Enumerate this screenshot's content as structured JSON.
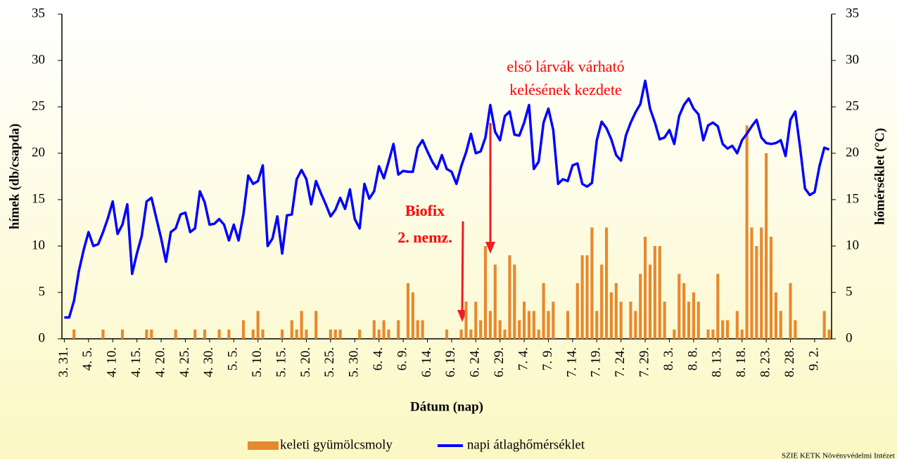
{
  "chart_data": {
    "type": "bar-line",
    "xlabel": "Dátum (nap)",
    "ylabel": "hímek (db/csapda)",
    "y2label": "hőmérséklet (°C)",
    "annotations": [
      "Biofix",
      "2. nemz.",
      "első lárvák várható",
      "kelésének kezdete"
    ],
    "source": "SZIE KETK Növényvédelmi Intézet",
    "categories": [
      "3. 31.",
      null,
      null,
      null,
      null,
      "4. 5.",
      null,
      null,
      null,
      null,
      "4. 10.",
      null,
      null,
      null,
      null,
      "4. 15.",
      null,
      null,
      null,
      null,
      "4. 20.",
      null,
      null,
      null,
      null,
      "4. 25.",
      null,
      null,
      null,
      null,
      "4. 30.",
      null,
      null,
      null,
      null,
      "5. 5.",
      null,
      null,
      null,
      null,
      "5. 10.",
      null,
      null,
      null,
      null,
      "5. 15.",
      null,
      null,
      null,
      null,
      "5. 20.",
      null,
      null,
      null,
      null,
      "5. 25.",
      null,
      null,
      null,
      null,
      "5. 30.",
      null,
      null,
      null,
      null,
      "6. 4.",
      null,
      null,
      null,
      null,
      "6. 9.",
      null,
      null,
      null,
      null,
      "6. 14.",
      null,
      null,
      null,
      null,
      "6. 19.",
      null,
      null,
      null,
      null,
      "6. 24.",
      null,
      null,
      null,
      null,
      "6. 29.",
      null,
      null,
      null,
      null,
      "7. 4.",
      null,
      null,
      null,
      null,
      "7. 9.",
      null,
      null,
      null,
      null,
      "7. 14.",
      null,
      null,
      null,
      null,
      "7. 19.",
      null,
      null,
      null,
      null,
      "7. 24.",
      null,
      null,
      null,
      null,
      "7. 29.",
      null,
      null,
      null,
      null,
      "8. 3.",
      null,
      null,
      null,
      null,
      "8. 8.",
      null,
      null,
      null,
      null,
      "8. 13.",
      null,
      null,
      null,
      null,
      "8. 18.",
      null,
      null,
      null,
      null,
      "8. 23.",
      null,
      null,
      null,
      null,
      "8. 28.",
      null,
      null,
      null,
      null,
      "9. 2.",
      null,
      null,
      null
    ],
    "series": [
      {
        "name": "keleti gyümölcsmoly",
        "kind": "bar",
        "axis": "y",
        "color": "#e8882e",
        "values": [
          0,
          0,
          1,
          0,
          0,
          0,
          0,
          0,
          1,
          0,
          0,
          0,
          1,
          0,
          0,
          0,
          0,
          1,
          1,
          0,
          0,
          0,
          0,
          1,
          0,
          0,
          0,
          1,
          0,
          1,
          0,
          0,
          1,
          0,
          1,
          0,
          0,
          2,
          0,
          1,
          3,
          1,
          0,
          0,
          0,
          1,
          0,
          2,
          1,
          3,
          1,
          0,
          3,
          0,
          0,
          1,
          1,
          1,
          0,
          0,
          0,
          1,
          0,
          0,
          2,
          1,
          2,
          1,
          0,
          2,
          0,
          6,
          5,
          2,
          2,
          0,
          0,
          0,
          0,
          1,
          0,
          0,
          1,
          4,
          1,
          4,
          2,
          10,
          3,
          8,
          2,
          1,
          9,
          8,
          2,
          4,
          3,
          3,
          1,
          6,
          3,
          4,
          0,
          0,
          3,
          0,
          6,
          9,
          9,
          12,
          3,
          8,
          12,
          5,
          6,
          4,
          0,
          4,
          3,
          7,
          11,
          8,
          10,
          10,
          4,
          0,
          1,
          7,
          6,
          4,
          5,
          4,
          0,
          1,
          1,
          7,
          2,
          2,
          0,
          3,
          1,
          23,
          12,
          10,
          12,
          20,
          11,
          5,
          3,
          0,
          6,
          2,
          0,
          0,
          0,
          0,
          0,
          3,
          1
        ]
      },
      {
        "name": "napi átlaghőmérséklet",
        "kind": "line",
        "axis": "y2",
        "color": "#0000ff",
        "values": [
          2.3,
          2.3,
          4.1,
          7.3,
          9.6,
          11.5,
          10,
          10.2,
          11.5,
          13,
          14.8,
          11.3,
          12.3,
          14.5,
          7,
          9.2,
          11.1,
          14.8,
          15.2,
          13,
          10.8,
          8.3,
          11.5,
          11.9,
          13.4,
          13.6,
          11.5,
          11.9,
          15.9,
          14.7,
          12.3,
          12.4,
          12.9,
          12.3,
          10.6,
          12.3,
          10.6,
          13.4,
          17.6,
          16.7,
          17,
          18.7,
          10,
          10.8,
          13.2,
          9.2,
          13.3,
          13.4,
          17.2,
          18.2,
          17.2,
          14.5,
          17,
          15.7,
          14.5,
          13.2,
          13.9,
          15.2,
          14,
          16.1,
          12.9,
          11.9,
          16.7,
          15.1,
          15.9,
          18.6,
          17.3,
          19.1,
          21,
          17.7,
          18.1,
          18,
          18,
          20.6,
          21.4,
          20.2,
          19.1,
          18.3,
          19.8,
          18.3,
          18,
          16.7,
          18.6,
          20.1,
          22.1,
          20,
          20.2,
          21.7,
          25.2,
          22.3,
          21.4,
          24,
          24.5,
          22,
          21.9,
          23.3,
          25.2,
          18.3,
          19.1,
          23.3,
          24.8,
          22.5,
          16.7,
          17.2,
          17,
          18.7,
          18.9,
          16.7,
          16.4,
          16.8,
          21.4,
          23.4,
          22.7,
          21.5,
          19.8,
          19.2,
          21.9,
          23.3,
          24.4,
          25.3,
          27.8,
          24.8,
          23.3,
          21.5,
          21.7,
          22.5,
          21,
          24,
          25.2,
          25.9,
          24.8,
          24.2,
          21.4,
          23,
          23.3,
          22.9,
          21,
          20.5,
          20.8,
          20,
          21.4,
          22.1,
          22.9,
          23.6,
          21.7,
          21.1,
          21,
          21.1,
          21.4,
          19.7,
          23.6,
          24.5,
          20.6,
          16.2,
          15.5,
          15.8,
          18.6,
          20.6,
          20.4
        ]
      }
    ],
    "ylim": [
      0,
      35
    ],
    "yticks": [
      0,
      5,
      10,
      15,
      20,
      25,
      30,
      35
    ],
    "y2lim": [
      0,
      35
    ],
    "y2ticks": [
      0,
      5,
      10,
      15,
      20,
      25,
      30,
      35
    ],
    "legend": "bottom"
  }
}
